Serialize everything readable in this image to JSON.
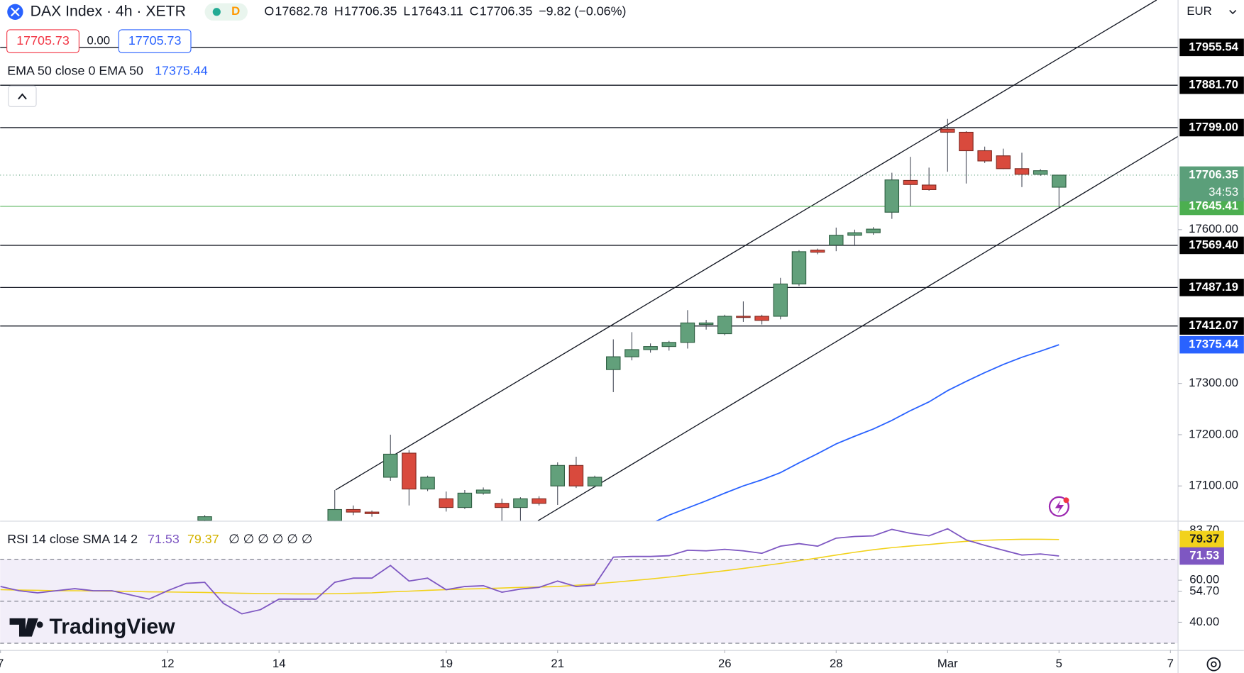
{
  "chart_data": {
    "type": "candlestick",
    "title": "DAX Index · 4h · XETR",
    "interval_badge": "D",
    "ohlc_legend": [
      {
        "label": "O",
        "value": "17682.78"
      },
      {
        "label": "H",
        "value": "17706.35"
      },
      {
        "label": "L",
        "value": "17643.11"
      },
      {
        "label": "C",
        "value": "17706.35"
      }
    ],
    "change": "−9.82 (−0.06%)",
    "quote": {
      "bid": "17705.73",
      "spread": "0.00",
      "ask": "17705.73"
    },
    "currency": "EUR",
    "brand": "TradingView",
    "up_color": "#62a07b",
    "down_color": "#d94a3d",
    "x": [
      0,
      7,
      8,
      9,
      10,
      11,
      12,
      13,
      14,
      15,
      16,
      17,
      18,
      19,
      20,
      21,
      22,
      23,
      24,
      25,
      26,
      27,
      28,
      29,
      30,
      31,
      32,
      33,
      34,
      35,
      36,
      37,
      38,
      39,
      40,
      41,
      42,
      43,
      44,
      45,
      46
    ],
    "open": [
      17033,
      17032,
      17054,
      17049,
      17117,
      17164,
      17094,
      17075,
      17058,
      17086,
      17066,
      17058,
      17075,
      17100,
      17140,
      17100,
      17327,
      17352,
      17366,
      17372,
      17380,
      17415,
      17397,
      17431,
      17431,
      17431,
      17494,
      17560,
      17570,
      17589,
      17594,
      17634,
      17696,
      17687,
      17796,
      17790,
      17754,
      17744,
      17719,
      17708,
      17682.78
    ],
    "high": [
      17043,
      17092,
      17062,
      17052,
      17200,
      17170,
      17120,
      17089,
      17092,
      17097,
      17075,
      17078,
      17080,
      17146,
      17157,
      17120,
      17386,
      17400,
      17378,
      17383,
      17443,
      17424,
      17434,
      17460,
      17434,
      17506,
      17560,
      17563,
      17604,
      17600,
      17605,
      17711,
      17742,
      17721,
      17816,
      17792,
      17762,
      17758,
      17750,
      17718,
      17706.35
    ],
    "low": [
      17030,
      17030,
      17043,
      17040,
      17110,
      17062,
      17090,
      17050,
      17055,
      17083,
      17032,
      17032,
      17062,
      17063,
      17096,
      17097,
      17283,
      17345,
      17360,
      17364,
      17368,
      17405,
      17394,
      17420,
      17415,
      17425,
      17490,
      17552,
      17558,
      17568,
      17590,
      17621,
      17646,
      17676,
      17713,
      17690,
      17730,
      17718,
      17683,
      17705,
      17643.11
    ],
    "close": [
      17040,
      17054,
      17049,
      17046,
      17162,
      17094,
      17117,
      17058,
      17086,
      17092,
      17058,
      17075,
      17066,
      17140,
      17100,
      17117,
      17352,
      17366,
      17372,
      17380,
      17418,
      17418,
      17431,
      17430,
      17423,
      17494,
      17557,
      17556,
      17589,
      17594,
      17601,
      17697,
      17688,
      17678,
      17790,
      17754,
      17734,
      17719,
      17708,
      17715,
      17706.35
    ],
    "xlim": [
      -11.02,
      52.41
    ],
    "xticks": [
      {
        "value": -11,
        "label": "7"
      },
      {
        "value": -2,
        "label": "12"
      },
      {
        "value": 4,
        "label": "14"
      },
      {
        "value": 13,
        "label": "19"
      },
      {
        "value": 19,
        "label": "21"
      },
      {
        "value": 28,
        "label": "26"
      },
      {
        "value": 34,
        "label": "28"
      },
      {
        "value": 40,
        "label": "Mar"
      },
      {
        "value": 46,
        "label": "5"
      },
      {
        "value": 52,
        "label": "7"
      }
    ],
    "ylim": [
      17032,
      18048
    ],
    "yticks": [
      {
        "value": 17100,
        "label": "17100.00"
      },
      {
        "value": 17200,
        "label": "17200.00"
      },
      {
        "value": 17300,
        "label": "17300.00"
      },
      {
        "value": 17600,
        "label": "17600.00"
      }
    ],
    "levels": [
      {
        "value": 17955.54,
        "label": "17955.54"
      },
      {
        "value": 17881.7,
        "label": "17881.70"
      },
      {
        "value": 17799,
        "label": "17799.00"
      },
      {
        "value": 17569.4,
        "label": "17569.40"
      },
      {
        "value": 17487.19,
        "label": "17487.19"
      },
      {
        "value": 17412.07,
        "label": "17412.07"
      }
    ],
    "support": {
      "value": 17645.41,
      "label": "17645.41",
      "color": "#4caf50"
    },
    "last_price": {
      "value": 17706.35,
      "label": "17706.35",
      "countdown": "34:53",
      "color": "#5b9f7a"
    },
    "ema": {
      "title": "EMA 50 close 0 EMA 50",
      "value_label": "17375.44",
      "color": "#2962ff",
      "x": [
        24,
        25,
        26,
        27,
        28,
        29,
        30,
        31,
        32,
        33,
        34,
        35,
        36,
        37,
        38,
        39,
        40,
        41,
        42,
        43,
        44,
        45,
        46
      ],
      "values": [
        17026,
        17043,
        17057,
        17071,
        17086,
        17100,
        17112,
        17126,
        17145,
        17163,
        17182,
        17197,
        17211,
        17228,
        17247,
        17264,
        17286,
        17304,
        17321,
        17337,
        17351,
        17363,
        17375.44
      ]
    },
    "rsi": {
      "title": "RSI 14 close SMA 14 2",
      "value_label": "71.53",
      "sma_label": "79.37",
      "extra": "∅ ∅ ∅ ∅ ∅ ∅",
      "color": "#7e57c2",
      "sma_color": "#f2d21b",
      "ylim": [
        26.8,
        87.9
      ],
      "yticks": [
        {
          "value": 83.7,
          "label": "83.70"
        },
        {
          "value": 60,
          "label": "60.00"
        },
        {
          "value": 54.7,
          "label": "54.70"
        },
        {
          "value": 40,
          "label": "40.00"
        }
      ],
      "band_levels": [
        70,
        50,
        30
      ],
      "x": [
        -11,
        -10,
        -9,
        -8,
        -7,
        -6,
        -5,
        -4,
        -3,
        -2,
        -1,
        0,
        1,
        2,
        3,
        4,
        5,
        6,
        7,
        8,
        9,
        10,
        11,
        12,
        13,
        14,
        15,
        16,
        17,
        18,
        19,
        20,
        21,
        22,
        23,
        24,
        25,
        26,
        27,
        28,
        29,
        30,
        31,
        32,
        33,
        34,
        35,
        36,
        37,
        38,
        39,
        40,
        41,
        42,
        43,
        44,
        45,
        46
      ],
      "values": [
        57,
        55,
        54,
        55,
        56,
        55,
        55,
        53,
        51,
        55,
        58.5,
        59,
        49,
        44,
        46,
        51,
        51,
        51,
        59,
        61,
        61,
        67,
        59.6,
        61,
        55.5,
        57,
        57.4,
        54.3,
        55.8,
        56.6,
        59.6,
        57,
        57.7,
        71,
        71.3,
        71.3,
        71.7,
        74.3,
        74,
        74.7,
        74,
        72.8,
        76.2,
        77.4,
        76.2,
        80,
        80.8,
        81.1,
        84.2,
        82.3,
        81.1,
        84.5,
        79.2,
        76.6,
        74.3,
        72,
        72.5,
        71.53
      ],
      "sma_values": [
        55.5,
        55.3,
        55.2,
        55,
        55,
        54.9,
        54.8,
        54.7,
        54.5,
        54.4,
        54.3,
        54.2,
        54,
        53.8,
        53.7,
        53.6,
        53.5,
        53.5,
        53.6,
        53.8,
        54,
        54.5,
        54.8,
        55.2,
        55.5,
        55.8,
        56,
        56.3,
        56.6,
        56.8,
        57,
        57.6,
        58.3,
        59,
        59.8,
        60.6,
        61.5,
        62.5,
        63.5,
        64.5,
        65.6,
        66.8,
        68,
        69.3,
        70.6,
        72,
        73.3,
        74.5,
        75.5,
        76.3,
        77,
        77.8,
        78.5,
        79,
        79.3,
        79.5,
        79.5,
        79.37
      ]
    }
  }
}
